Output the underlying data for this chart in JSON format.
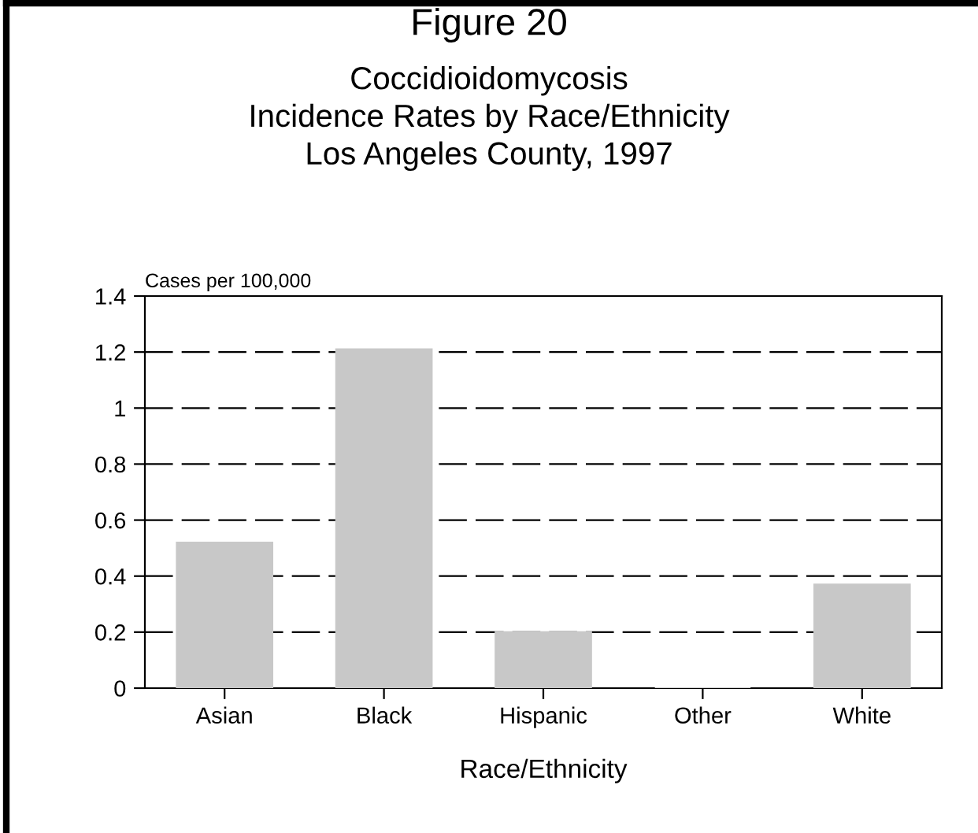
{
  "chart_data": {
    "type": "bar",
    "title": "Figure 20",
    "subtitle": "Coccidioidomycosis\nIncidence Rates by Race/Ethnicity\nLos Angeles County, 1997",
    "xlabel": "Race/Ethnicity",
    "ylabel": "Cases per 100,000",
    "categories": [
      "Asian",
      "Black",
      "Hispanic",
      "Other",
      "White"
    ],
    "values": [
      0.52,
      1.21,
      0.2,
      0,
      0.37
    ],
    "color": "#c8c8c8",
    "ylim": [
      0,
      1.4
    ],
    "yticks": [
      0,
      0.2,
      0.4,
      0.6,
      0.8,
      1,
      1.2,
      1.4
    ],
    "grid": "y",
    "line_style": "dashed"
  }
}
